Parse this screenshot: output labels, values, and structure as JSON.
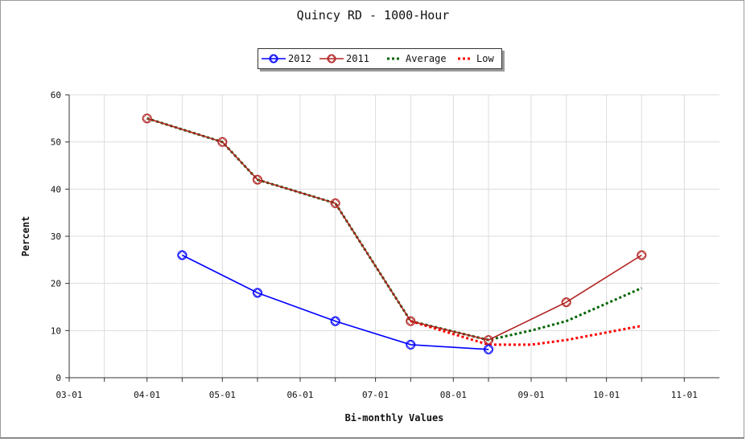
{
  "chart_data": {
    "type": "line",
    "title": "Quincy RD - 1000-Hour",
    "xlabel": "Bi-monthly Values",
    "ylabel": "Percent",
    "ylim": [
      0,
      60
    ],
    "yticks": [
      "0",
      "10",
      "20",
      "30",
      "40",
      "50",
      "60"
    ],
    "xticks": [
      "03-01",
      "04-01",
      "05-01",
      "06-01",
      "07-01",
      "08-01",
      "09-01",
      "10-01",
      "11-01"
    ],
    "grid": true,
    "legend_position": "top-center",
    "series": [
      {
        "name": "2012",
        "color": "#0000ff",
        "style": "solid",
        "marker": "diamond-circle",
        "x": [
          "04-15",
          "05-15",
          "06-15",
          "07-15",
          "08-15"
        ],
        "values": [
          26,
          18,
          12,
          7,
          6
        ]
      },
      {
        "name": "2011",
        "color": "#b22222",
        "style": "solid",
        "marker": "diamond-circle",
        "x": [
          "04-01",
          "05-01",
          "05-15",
          "06-15",
          "07-15",
          "08-15",
          "09-15",
          "10-15"
        ],
        "values": [
          55,
          50,
          42,
          37,
          12,
          8,
          16,
          26
        ]
      },
      {
        "name": "Average",
        "color": "#006400",
        "style": "dotted",
        "marker": "none",
        "x": [
          "04-01",
          "05-01",
          "05-15",
          "06-15",
          "07-15",
          "08-15",
          "09-01",
          "09-15",
          "10-15"
        ],
        "values": [
          55,
          50,
          42,
          37,
          12,
          8,
          10,
          12,
          19
        ]
      },
      {
        "name": "Low",
        "color": "#ff0000",
        "style": "dotted",
        "marker": "none",
        "x": [
          "07-15",
          "08-15",
          "09-01",
          "09-15",
          "10-15"
        ],
        "values": [
          12,
          7,
          7,
          8,
          11
        ]
      }
    ]
  }
}
